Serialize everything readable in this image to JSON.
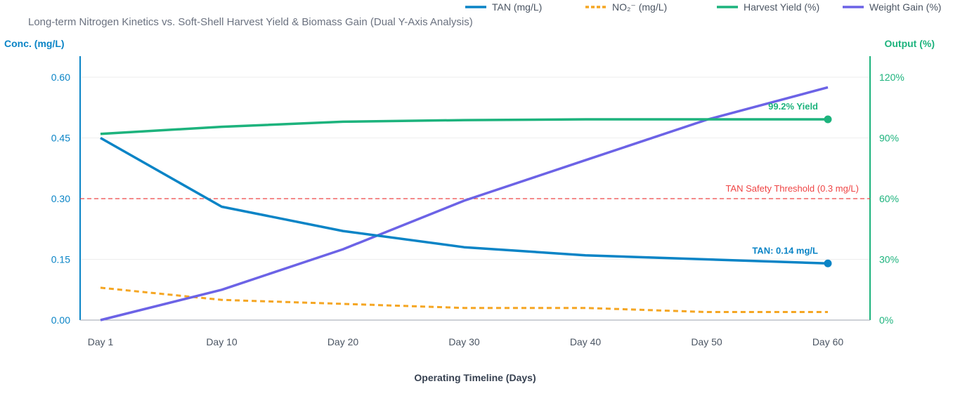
{
  "chart_data": {
    "type": "line",
    "title": "Long-term Nitrogen Kinetics vs. Soft-Shell Harvest Yield & Biomass Gain (Dual Y-Axis Analysis)",
    "xlabel": "Operating Timeline (Days)",
    "ylabel_left": "Conc. (mg/L)",
    "ylabel_right": "Output (%)",
    "categories": [
      "Day 1",
      "Day 10",
      "Day 20",
      "Day 30",
      "Day 40",
      "Day 50",
      "Day 60"
    ],
    "ylim_left": [
      0,
      0.6
    ],
    "yticks_left": [
      "0.00",
      "0.15",
      "0.30",
      "0.45",
      "0.60"
    ],
    "ylim_right": [
      0,
      120
    ],
    "yticks_right": [
      "0%",
      "30%",
      "60%",
      "90%",
      "120%"
    ],
    "grid": true,
    "legend_position": "top-right",
    "series": [
      {
        "name": "TAN (mg/L)",
        "axis": "left",
        "color": "#0a84c6",
        "dash": false,
        "values": [
          0.45,
          0.28,
          0.22,
          0.18,
          0.16,
          0.15,
          0.14
        ]
      },
      {
        "name": "NO₂⁻ (mg/L)",
        "axis": "left",
        "color": "#f5a623",
        "dash": true,
        "values": [
          0.08,
          0.05,
          0.04,
          0.03,
          0.03,
          0.02,
          0.02
        ]
      },
      {
        "name": "Harvest Yield (%)",
        "axis": "right",
        "color": "#1db37d",
        "dash": false,
        "values": [
          92.0,
          95.5,
          98.0,
          98.8,
          99.2,
          99.2,
          99.2
        ]
      },
      {
        "name": "Weight Gain (%)",
        "axis": "right",
        "color": "#6c63e6",
        "dash": false,
        "values": [
          0,
          15,
          35,
          59,
          79,
          99,
          115
        ]
      }
    ],
    "threshold": {
      "label": "TAN Safety Threshold (0.3 mg/L)",
      "value": 0.3,
      "axis": "left",
      "color": "#ef4444"
    },
    "annotations": [
      {
        "text": "TAN: 0.14 mg/L",
        "series": 0,
        "color": "#0a84c6"
      },
      {
        "text": "99.2% Yield",
        "series": 2,
        "color": "#1db37d"
      }
    ],
    "left_axis_color": "#0a84c6",
    "right_axis_color": "#1db37d"
  }
}
